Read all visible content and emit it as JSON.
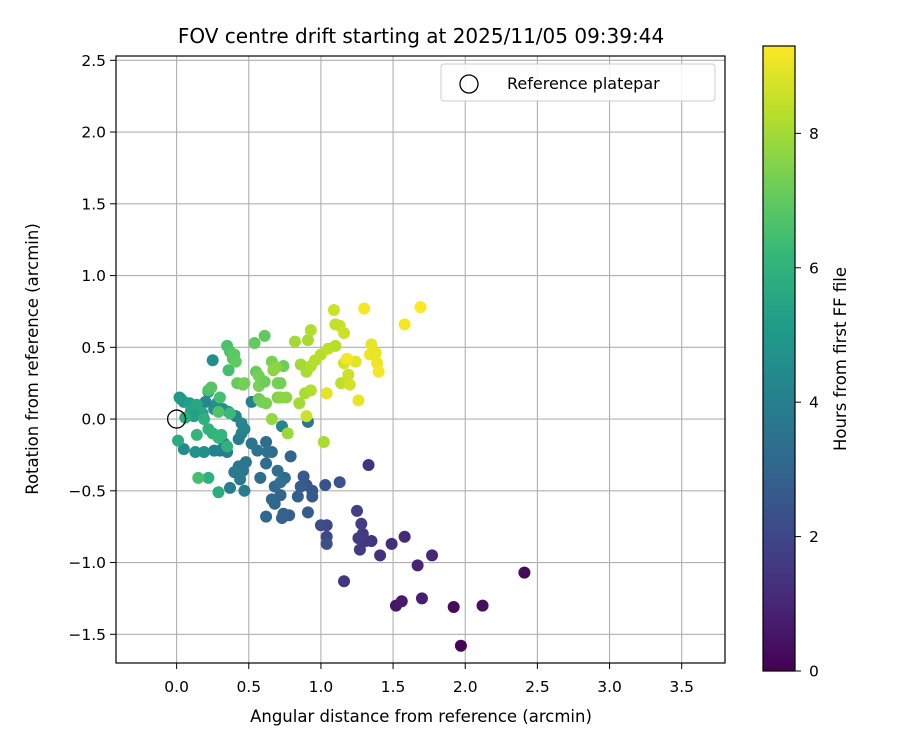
{
  "chart_data": {
    "type": "scatter",
    "title": "FOV centre drift starting at 2025/11/05 09:39:44",
    "xlabel": "Angular distance from reference (arcmin)",
    "ylabel": "Rotation from reference (arcmin)",
    "xlim": [
      -0.42,
      3.8
    ],
    "ylim": [
      -1.7,
      2.53
    ],
    "xticks": [
      0.0,
      0.5,
      1.0,
      1.5,
      2.0,
      2.5,
      3.0,
      3.5
    ],
    "xtick_labels": [
      "0.0",
      "0.5",
      "1.0",
      "1.5",
      "2.0",
      "2.5",
      "3.0",
      "3.5"
    ],
    "yticks": [
      -1.5,
      -1.0,
      -0.5,
      0.0,
      0.5,
      1.0,
      1.5,
      2.0,
      2.5
    ],
    "ytick_labels": [
      "−1.5",
      "−1.0",
      "−0.5",
      "0.0",
      "0.5",
      "1.0",
      "1.5",
      "2.0",
      "2.5"
    ],
    "grid": true,
    "legend": {
      "position": "top-right",
      "entries": [
        "Reference platepar"
      ]
    },
    "reference_point": {
      "x": 0.0,
      "y": 0.0,
      "label": "Reference platepar"
    },
    "colorbar": {
      "label": "Hours from first FF file",
      "range": [
        0,
        9.3
      ],
      "ticks": [
        0,
        2,
        4,
        6,
        8
      ],
      "tick_labels": [
        "0",
        "2",
        "4",
        "6",
        "8"
      ],
      "colormap": [
        "#440154",
        "#482878",
        "#3e4989",
        "#31688e",
        "#26828e",
        "#1f9e89",
        "#35b779",
        "#6ece58",
        "#b5de2b",
        "#fde725"
      ]
    },
    "point_columns": [
      "x",
      "y",
      "hours"
    ],
    "points": [
      [
        1.97,
        -1.58,
        0.1
      ],
      [
        2.41,
        -1.07,
        0.2
      ],
      [
        1.92,
        -1.31,
        0.3
      ],
      [
        2.12,
        -1.3,
        0.4
      ],
      [
        1.52,
        -1.3,
        0.6
      ],
      [
        1.56,
        -1.27,
        0.7
      ],
      [
        1.7,
        -1.25,
        0.8
      ],
      [
        1.67,
        -1.02,
        0.9
      ],
      [
        1.77,
        -0.95,
        1.0
      ],
      [
        1.58,
        -0.82,
        1.1
      ],
      [
        1.49,
        -0.87,
        1.2
      ],
      [
        1.41,
        -0.95,
        1.3
      ],
      [
        1.35,
        -0.85,
        1.4
      ],
      [
        1.31,
        -0.85,
        1.5
      ],
      [
        1.29,
        -0.8,
        1.6
      ],
      [
        1.27,
        -0.91,
        1.6
      ],
      [
        1.26,
        -0.83,
        1.7
      ],
      [
        1.28,
        -0.73,
        1.7
      ],
      [
        1.25,
        -0.64,
        1.8
      ],
      [
        1.33,
        -0.32,
        1.4
      ],
      [
        1.16,
        -1.13,
        1.5
      ],
      [
        1.04,
        -0.82,
        2.0
      ],
      [
        1.04,
        -0.74,
        2.0
      ],
      [
        1.0,
        -0.74,
        2.2
      ],
      [
        1.04,
        -0.87,
        2.3
      ],
      [
        1.13,
        -0.44,
        2.4
      ],
      [
        1.03,
        -0.46,
        2.4
      ],
      [
        0.94,
        -0.5,
        2.5
      ],
      [
        0.9,
        -0.46,
        2.5
      ],
      [
        0.94,
        -0.54,
        2.6
      ],
      [
        0.88,
        -0.4,
        2.6
      ],
      [
        0.86,
        -0.47,
        2.7
      ],
      [
        0.91,
        -0.65,
        2.7
      ],
      [
        0.84,
        -0.54,
        2.8
      ],
      [
        0.78,
        -0.67,
        2.8
      ],
      [
        0.74,
        -0.66,
        2.9
      ],
      [
        0.73,
        -0.69,
        2.9
      ],
      [
        0.68,
        -0.59,
        3.0
      ],
      [
        0.72,
        -0.53,
        3.0
      ],
      [
        0.62,
        -0.68,
        3.1
      ],
      [
        0.66,
        -0.56,
        3.1
      ],
      [
        0.75,
        -0.41,
        3.2
      ],
      [
        0.68,
        -0.47,
        3.2
      ],
      [
        0.58,
        -0.41,
        3.3
      ],
      [
        0.62,
        -0.31,
        3.3
      ],
      [
        0.79,
        -0.26,
        3.0
      ],
      [
        0.72,
        -0.44,
        3.4
      ],
      [
        0.7,
        -0.36,
        3.4
      ],
      [
        0.66,
        -0.23,
        3.2
      ],
      [
        0.62,
        -0.16,
        3.3
      ],
      [
        0.63,
        -0.23,
        3.5
      ],
      [
        0.56,
        -0.22,
        3.5
      ],
      [
        0.52,
        -0.17,
        3.6
      ],
      [
        0.48,
        -0.3,
        3.6
      ],
      [
        0.46,
        -0.36,
        3.7
      ],
      [
        0.43,
        -0.33,
        3.7
      ],
      [
        0.44,
        -0.42,
        3.8
      ],
      [
        0.4,
        -0.37,
        3.8
      ],
      [
        0.37,
        -0.48,
        3.9
      ],
      [
        0.47,
        -0.5,
        3.9
      ],
      [
        0.35,
        -0.23,
        4.0
      ],
      [
        0.3,
        -0.22,
        4.0
      ],
      [
        0.33,
        -0.17,
        4.1
      ],
      [
        0.26,
        -0.22,
        4.1
      ],
      [
        0.43,
        -0.14,
        3.9
      ],
      [
        0.45,
        -0.1,
        4.0
      ],
      [
        0.47,
        -0.07,
        4.2
      ],
      [
        0.41,
        0.02,
        4.2
      ],
      [
        0.45,
        -0.03,
        4.3
      ],
      [
        0.22,
        0.19,
        4.4
      ],
      [
        0.2,
        0.12,
        4.3
      ],
      [
        0.25,
        0.41,
        4.6
      ],
      [
        0.36,
        0.05,
        4.5
      ],
      [
        0.32,
        0.07,
        4.6
      ],
      [
        0.26,
        0.07,
        4.5
      ],
      [
        0.19,
        -0.23,
        4.6
      ],
      [
        0.05,
        -0.21,
        4.5
      ],
      [
        0.13,
        -0.23,
        4.7
      ],
      [
        0.28,
        0.11,
        4.7
      ],
      [
        0.52,
        0.12,
        4.1
      ],
      [
        0.73,
        -0.05,
        4.2
      ],
      [
        0.91,
        -0.02,
        3.7
      ],
      [
        0.03,
        0.14,
        5.0
      ],
      [
        0.05,
        0.12,
        5.0
      ],
      [
        0.02,
        0.15,
        5.0
      ],
      [
        0.09,
        0.11,
        5.2
      ],
      [
        0.1,
        0.06,
        5.4
      ],
      [
        0.14,
        0.1,
        5.6
      ],
      [
        0.18,
        0.04,
        5.5
      ],
      [
        0.12,
        0.02,
        5.3
      ],
      [
        0.06,
        0.01,
        5.8
      ],
      [
        0.19,
        0.0,
        5.9
      ],
      [
        0.22,
        -0.07,
        6.0
      ],
      [
        0.14,
        -0.11,
        6.1
      ],
      [
        0.01,
        -0.15,
        5.7
      ],
      [
        0.25,
        -0.1,
        6.0
      ],
      [
        0.29,
        -0.13,
        6.2
      ],
      [
        0.31,
        -0.11,
        6.1
      ],
      [
        0.35,
        -0.19,
        6.0
      ],
      [
        0.22,
        -0.41,
        5.9
      ],
      [
        0.29,
        -0.51,
        5.8
      ],
      [
        0.37,
        0.04,
        6.3
      ],
      [
        0.29,
        0.05,
        6.7
      ],
      [
        0.3,
        0.15,
        6.5
      ],
      [
        0.22,
        0.2,
        6.6
      ],
      [
        0.24,
        0.22,
        6.8
      ],
      [
        0.15,
        -0.41,
        6.5
      ],
      [
        0.36,
        0.34,
        6.5
      ],
      [
        0.35,
        0.51,
        6.6
      ],
      [
        0.37,
        0.47,
        6.7
      ],
      [
        0.39,
        0.42,
        6.8
      ],
      [
        0.4,
        0.45,
        6.9
      ],
      [
        0.41,
        0.4,
        7.0
      ],
      [
        0.42,
        0.25,
        7.1
      ],
      [
        0.46,
        0.24,
        7.2
      ],
      [
        0.47,
        0.25,
        7.3
      ],
      [
        0.55,
        0.33,
        7.1
      ],
      [
        0.54,
        0.53,
        7.0
      ],
      [
        0.61,
        0.58,
        7.0
      ],
      [
        0.57,
        0.3,
        7.3
      ],
      [
        0.57,
        0.23,
        7.4
      ],
      [
        0.61,
        0.26,
        7.2
      ],
      [
        0.7,
        0.25,
        7.4
      ],
      [
        0.72,
        0.25,
        7.3
      ],
      [
        0.74,
        0.37,
        7.2
      ],
      [
        0.66,
        0.4,
        7.4
      ],
      [
        0.69,
        0.36,
        7.6
      ],
      [
        0.67,
        0.34,
        7.7
      ],
      [
        0.57,
        0.14,
        7.2
      ],
      [
        0.59,
        0.12,
        7.3
      ],
      [
        0.62,
        0.11,
        7.4
      ],
      [
        0.7,
        0.15,
        7.5
      ],
      [
        0.72,
        0.15,
        7.6
      ],
      [
        0.76,
        0.15,
        7.7
      ],
      [
        0.66,
        0.0,
        7.8
      ],
      [
        0.77,
        -0.1,
        7.9
      ],
      [
        0.85,
        0.11,
        8.0
      ],
      [
        0.86,
        0.38,
        8.0
      ],
      [
        0.82,
        0.54,
        8.0
      ],
      [
        0.89,
        0.18,
        8.1
      ],
      [
        0.9,
        0.02,
        8.6
      ],
      [
        0.93,
        0.2,
        8.2
      ],
      [
        0.9,
        0.33,
        8.1
      ],
      [
        0.93,
        0.37,
        8.2
      ],
      [
        0.96,
        0.41,
        8.3
      ],
      [
        1.0,
        0.45,
        8.3
      ],
      [
        0.91,
        0.55,
        8.1
      ],
      [
        0.93,
        0.62,
        8.2
      ],
      [
        1.02,
        -0.16,
        8.1
      ],
      [
        1.05,
        0.49,
        8.4
      ],
      [
        1.1,
        0.51,
        8.3
      ],
      [
        1.13,
        0.65,
        8.5
      ],
      [
        1.1,
        0.66,
        8.5
      ],
      [
        1.09,
        0.76,
        8.6
      ],
      [
        1.14,
        0.25,
        8.4
      ],
      [
        1.16,
        0.6,
        8.6
      ],
      [
        1.19,
        0.31,
        8.6
      ],
      [
        1.2,
        0.24,
        8.7
      ],
      [
        1.16,
        0.39,
        8.7
      ],
      [
        1.04,
        0.18,
        8.9
      ],
      [
        1.24,
        0.4,
        8.9
      ],
      [
        1.26,
        0.13,
        9.0
      ],
      [
        1.3,
        0.77,
        9.2
      ],
      [
        1.35,
        0.52,
        9.0
      ],
      [
        1.34,
        0.45,
        9.1
      ],
      [
        1.38,
        0.46,
        9.0
      ],
      [
        1.39,
        0.39,
        9.1
      ],
      [
        1.4,
        0.33,
        9.2
      ],
      [
        1.58,
        0.66,
        9.2
      ],
      [
        1.69,
        0.78,
        9.3
      ],
      [
        1.18,
        0.42,
        9.2
      ]
    ]
  }
}
